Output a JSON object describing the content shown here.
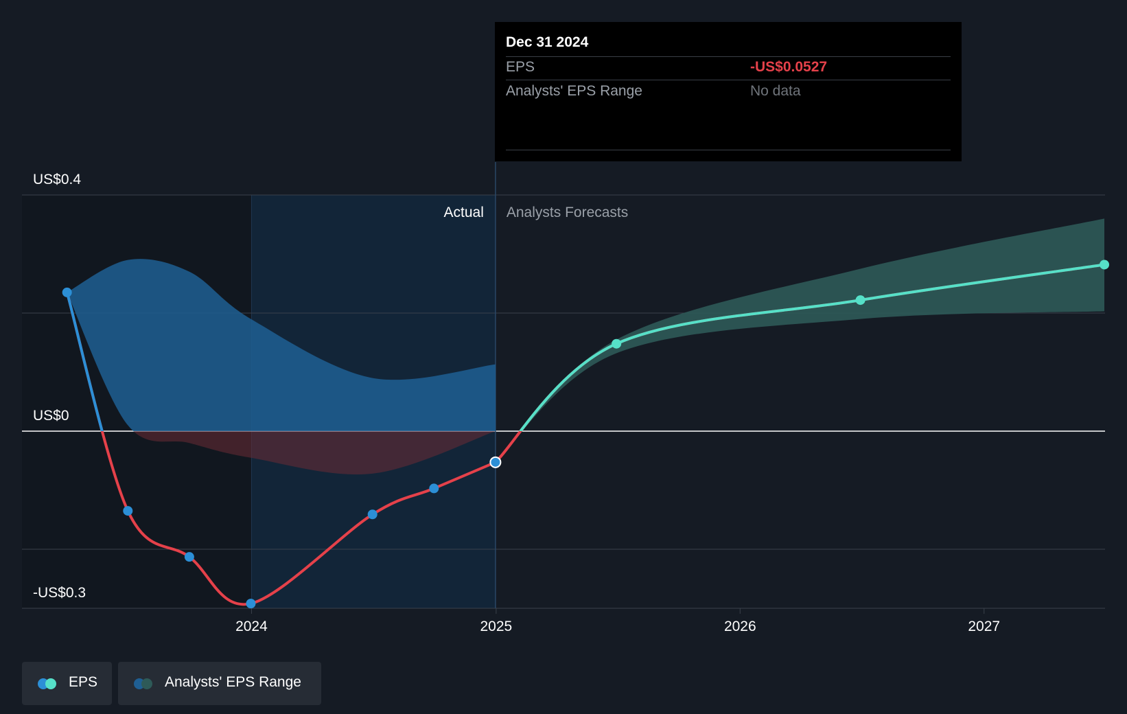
{
  "chart_data": {
    "type": "line",
    "x_domain": [
      "2023-01-01",
      "2027-07-01"
    ],
    "ylim": [
      -0.3,
      0.4
    ],
    "y_tick_labels": [
      {
        "value": 0.4,
        "label": "US$0.4"
      },
      {
        "value": 0.0,
        "label": "US$0"
      },
      {
        "value": -0.3,
        "label": "-US$0.3"
      }
    ],
    "y_gridlines": [
      0.4,
      0.2,
      0.0,
      -0.2,
      -0.3
    ],
    "x_ticks": [
      {
        "date": "2024-01-01",
        "label": "2024"
      },
      {
        "date": "2025-01-01",
        "label": "2025"
      },
      {
        "date": "2026-01-01",
        "label": "2026"
      },
      {
        "date": "2027-01-01",
        "label": "2027"
      }
    ],
    "divider_date": "2024-12-31",
    "highlight_start": "2024-01-01",
    "section_labels": {
      "actual": "Actual",
      "forecast": "Analysts Forecasts"
    },
    "series": [
      {
        "name": "EPS",
        "kind": "actual",
        "points": [
          [
            "2023-03-31",
            0.235
          ],
          [
            "2023-06-30",
            -0.135
          ],
          [
            "2023-09-30",
            -0.213
          ],
          [
            "2023-12-31",
            -0.292
          ],
          [
            "2024-06-30",
            -0.141
          ],
          [
            "2024-09-30",
            -0.097
          ],
          [
            "2024-12-31",
            -0.0527
          ]
        ]
      },
      {
        "name": "EPS",
        "kind": "forecast",
        "points": [
          [
            "2024-12-31",
            -0.0527
          ],
          [
            "2025-06-30",
            0.148
          ],
          [
            "2026-06-30",
            0.222
          ],
          [
            "2027-06-30",
            0.282
          ]
        ]
      }
    ],
    "actual_range": {
      "upper": [
        [
          "2023-03-31",
          0.235
        ],
        [
          "2023-06-30",
          0.29
        ],
        [
          "2023-09-30",
          0.27
        ],
        [
          "2023-12-31",
          0.19
        ],
        [
          "2024-06-30",
          0.09
        ],
        [
          "2024-12-31",
          0.113
        ]
      ],
      "lower": [
        [
          "2023-03-31",
          0.235
        ],
        [
          "2023-06-30",
          0.01
        ],
        [
          "2023-09-30",
          -0.02
        ],
        [
          "2023-12-31",
          -0.045
        ],
        [
          "2024-06-30",
          -0.072
        ],
        [
          "2024-12-31",
          0.0
        ]
      ]
    },
    "forecast_range": {
      "upper": [
        [
          "2024-12-31",
          -0.0527
        ],
        [
          "2025-06-30",
          0.155
        ],
        [
          "2026-06-30",
          0.275
        ],
        [
          "2027-06-30",
          0.36
        ]
      ],
      "lower": [
        [
          "2024-12-31",
          -0.0527
        ],
        [
          "2025-06-30",
          0.132
        ],
        [
          "2026-06-30",
          0.19
        ],
        [
          "2027-06-30",
          0.203
        ]
      ]
    },
    "colors": {
      "background": "#151b24",
      "actual_region": "#11171f",
      "highlight_region": "#122538",
      "eps_positive": "#2c8fd6",
      "eps_negative": "#e5414a",
      "forecast_line": "#56e0c8",
      "actual_range_fill": "#1f5f93",
      "forecast_range_fill": "#2e5a58",
      "tooltip_negative": "#e5414a"
    },
    "tooltip": {
      "date": "Dec 31 2024",
      "rows": [
        {
          "label": "EPS",
          "value": "-US$0.0527"
        },
        {
          "label": "Analysts' EPS Range",
          "value": "No data"
        }
      ]
    },
    "legend": [
      {
        "label": "EPS",
        "colors": [
          "#2c8fd6",
          "#56e0c8"
        ]
      },
      {
        "label": "Analysts' EPS Range",
        "colors": [
          "#1f5f93",
          "#2e5a58"
        ]
      }
    ]
  }
}
